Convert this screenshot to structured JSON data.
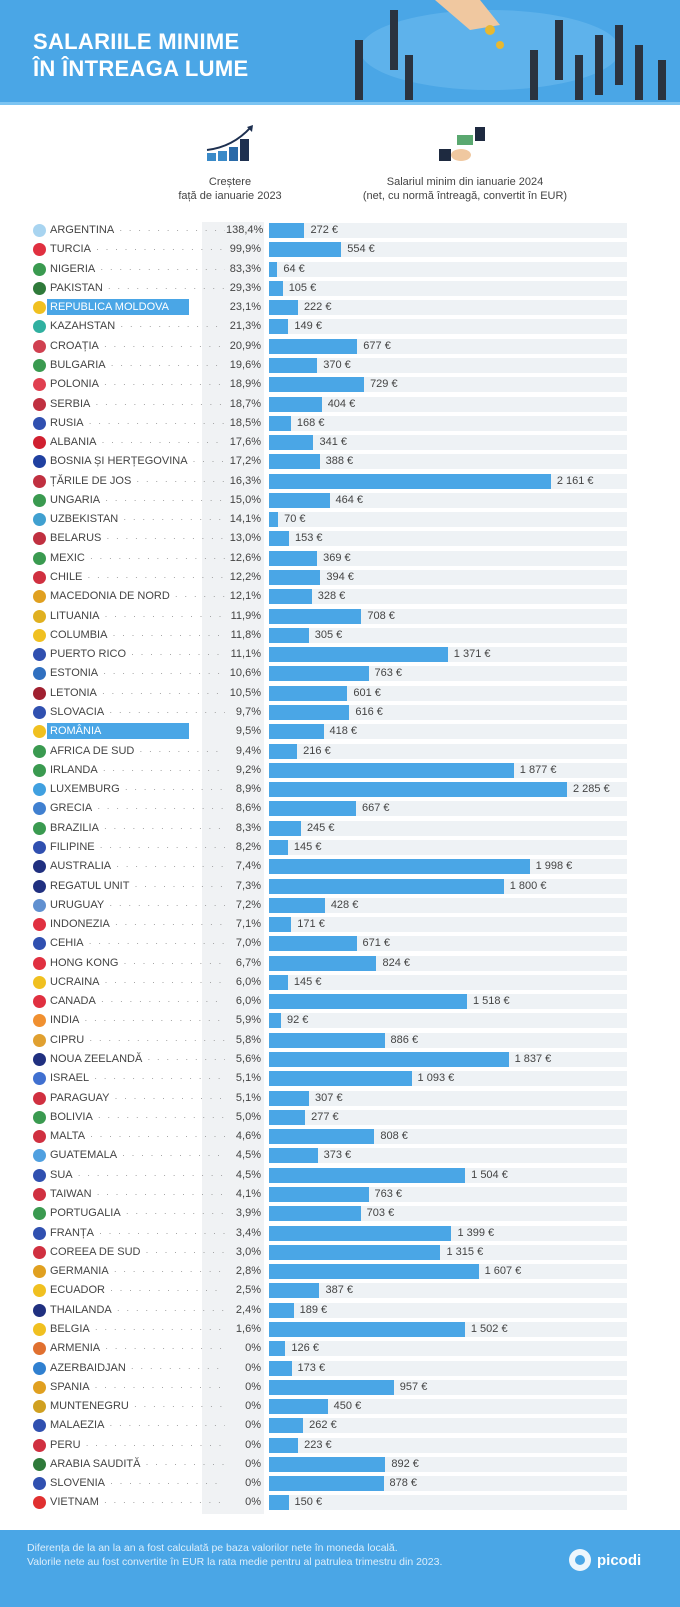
{
  "header": {
    "title_line1": "SALARIILE MINIME",
    "title_line2": "ÎN ÎNTREAGA LUME"
  },
  "columns": {
    "growth_line1": "Creștere",
    "growth_line2": "față de ianuarie 2023",
    "wage_line1": "Salariul minim din ianuarie 2024",
    "wage_line2": "(net, cu normă întreagă, convertit în EUR)"
  },
  "footer": {
    "note_line1": "Diferența de la an la an a fost calculată pe baza valorilor nete în moneda locală.",
    "note_line2": "Valorile nete au fost convertite în EUR la rata medie pentru al patrulea trimestru din 2023.",
    "logo": "picodi"
  },
  "colors": {
    "accent": "#4aa6e6",
    "track": "#eef2f5"
  },
  "chart_data": {
    "type": "bar",
    "orientation": "horizontal",
    "title": "SALARIILE MINIME ÎN ÎNTREAGA LUME",
    "unit": "€",
    "xlim": [
      0,
      2700
    ],
    "highlighted": [
      "REPUBLICA MOLDOVA",
      "ROMÂNIA"
    ],
    "rows": [
      {
        "country": "ARGENTINA",
        "growth": "138,4%",
        "wage": 272,
        "label": "272 €",
        "flag": "#a8d4f0"
      },
      {
        "country": "TURCIA",
        "growth": "99,9%",
        "wage": 554,
        "label": "554 €",
        "flag": "#e03040"
      },
      {
        "country": "NIGERIA",
        "growth": "83,3%",
        "wage": 64,
        "label": "64 €",
        "flag": "#3a9a50"
      },
      {
        "country": "PAKISTAN",
        "growth": "29,3%",
        "wage": 105,
        "label": "105 €",
        "flag": "#2f7a3a"
      },
      {
        "country": "REPUBLICA MOLDOVA",
        "growth": "23,1%",
        "wage": 222,
        "label": "222 €",
        "flag": "#f0c020"
      },
      {
        "country": "KAZAHSTAN",
        "growth": "21,3%",
        "wage": 149,
        "label": "149 €",
        "flag": "#30b0a0"
      },
      {
        "country": "CROAȚIA",
        "growth": "20,9%",
        "wage": 677,
        "label": "677 €",
        "flag": "#d04050"
      },
      {
        "country": "BULGARIA",
        "growth": "19,6%",
        "wage": 370,
        "label": "370 €",
        "flag": "#3a9a50"
      },
      {
        "country": "POLONIA",
        "growth": "18,9%",
        "wage": 729,
        "label": "729 €",
        "flag": "#e04050"
      },
      {
        "country": "SERBIA",
        "growth": "18,7%",
        "wage": 404,
        "label": "404 €",
        "flag": "#c03040"
      },
      {
        "country": "RUSIA",
        "growth": "18,5%",
        "wage": 168,
        "label": "168 €",
        "flag": "#3050b0"
      },
      {
        "country": "ALBANIA",
        "growth": "17,6%",
        "wage": 341,
        "label": "341 €",
        "flag": "#d02030"
      },
      {
        "country": "BOSNIA ȘI HERȚEGOVINA",
        "growth": "17,2%",
        "wage": 388,
        "label": "388 €",
        "flag": "#2040a0"
      },
      {
        "country": "ȚĂRILE DE JOS",
        "growth": "16,3%",
        "wage": 2161,
        "label": "2 161 €",
        "flag": "#c03040"
      },
      {
        "country": "UNGARIA",
        "growth": "15,0%",
        "wage": 464,
        "label": "464 €",
        "flag": "#3a9a50"
      },
      {
        "country": "UZBEKISTAN",
        "growth": "14,1%",
        "wage": 70,
        "label": "70 €",
        "flag": "#40a0d0"
      },
      {
        "country": "BELARUS",
        "growth": "13,0%",
        "wage": 153,
        "label": "153 €",
        "flag": "#c03040"
      },
      {
        "country": "MEXIC",
        "growth": "12,6%",
        "wage": 369,
        "label": "369 €",
        "flag": "#3a9a50"
      },
      {
        "country": "CHILE",
        "growth": "12,2%",
        "wage": 394,
        "label": "394 €",
        "flag": "#d03040"
      },
      {
        "country": "MACEDONIA DE NORD",
        "growth": "12,1%",
        "wage": 328,
        "label": "328 €",
        "flag": "#e0a020"
      },
      {
        "country": "LITUANIA",
        "growth": "11,9%",
        "wage": 708,
        "label": "708 €",
        "flag": "#e0b020"
      },
      {
        "country": "COLUMBIA",
        "growth": "11,8%",
        "wage": 305,
        "label": "305 €",
        "flag": "#f0c020"
      },
      {
        "country": "PUERTO RICO",
        "growth": "11,1%",
        "wage": 1371,
        "label": "1 371 €",
        "flag": "#3050b0"
      },
      {
        "country": "ESTONIA",
        "growth": "10,6%",
        "wage": 763,
        "label": "763 €",
        "flag": "#3070c0"
      },
      {
        "country": "LETONIA",
        "growth": "10,5%",
        "wage": 601,
        "label": "601 €",
        "flag": "#a02030"
      },
      {
        "country": "SLOVACIA",
        "growth": "9,7%",
        "wage": 616,
        "label": "616 €",
        "flag": "#3050b0"
      },
      {
        "country": "ROMÂNIA",
        "growth": "9,5%",
        "wage": 418,
        "label": "418 €",
        "flag": "#f0c020"
      },
      {
        "country": "AFRICA DE SUD",
        "growth": "9,4%",
        "wage": 216,
        "label": "216 €",
        "flag": "#3a9a50"
      },
      {
        "country": "IRLANDA",
        "growth": "9,2%",
        "wage": 1877,
        "label": "1 877 €",
        "flag": "#3a9a50"
      },
      {
        "country": "LUXEMBURG",
        "growth": "8,9%",
        "wage": 2285,
        "label": "2 285 €",
        "flag": "#40a0e0"
      },
      {
        "country": "GRECIA",
        "growth": "8,6%",
        "wage": 667,
        "label": "667 €",
        "flag": "#4080d0"
      },
      {
        "country": "BRAZILIA",
        "growth": "8,3%",
        "wage": 245,
        "label": "245 €",
        "flag": "#3a9a50"
      },
      {
        "country": "FILIPINE",
        "growth": "8,2%",
        "wage": 145,
        "label": "145 €",
        "flag": "#3050b0"
      },
      {
        "country": "AUSTRALIA",
        "growth": "7,4%",
        "wage": 1998,
        "label": "1 998 €",
        "flag": "#203080"
      },
      {
        "country": "REGATUL UNIT",
        "growth": "7,3%",
        "wage": 1800,
        "label": "1 800 €",
        "flag": "#203080"
      },
      {
        "country": "URUGUAY",
        "growth": "7,2%",
        "wage": 428,
        "label": "428 €",
        "flag": "#6090d0"
      },
      {
        "country": "INDONEZIA",
        "growth": "7,1%",
        "wage": 171,
        "label": "171 €",
        "flag": "#e03040"
      },
      {
        "country": "CEHIA",
        "growth": "7,0%",
        "wage": 671,
        "label": "671 €",
        "flag": "#3050b0"
      },
      {
        "country": "HONG KONG",
        "growth": "6,7%",
        "wage": 824,
        "label": "824 €",
        "flag": "#e03040"
      },
      {
        "country": "UCRAINA",
        "growth": "6,0%",
        "wage": 145,
        "label": "145 €",
        "flag": "#f0c020"
      },
      {
        "country": "CANADA",
        "growth": "6,0%",
        "wage": 1518,
        "label": "1 518 €",
        "flag": "#e03040"
      },
      {
        "country": "INDIA",
        "growth": "5,9%",
        "wage": 92,
        "label": "92 €",
        "flag": "#f09030"
      },
      {
        "country": "CIPRU",
        "growth": "5,8%",
        "wage": 886,
        "label": "886 €",
        "flag": "#e0a030"
      },
      {
        "country": "NOUA ZEELANDĂ",
        "growth": "5,6%",
        "wage": 1837,
        "label": "1 837 €",
        "flag": "#203080"
      },
      {
        "country": "ISRAEL",
        "growth": "5,1%",
        "wage": 1093,
        "label": "1 093 €",
        "flag": "#4070d0"
      },
      {
        "country": "PARAGUAY",
        "growth": "5,1%",
        "wage": 307,
        "label": "307 €",
        "flag": "#d03040"
      },
      {
        "country": "BOLIVIA",
        "growth": "5,0%",
        "wage": 277,
        "label": "277 €",
        "flag": "#3a9a50"
      },
      {
        "country": "MALTA",
        "growth": "4,6%",
        "wage": 808,
        "label": "808 €",
        "flag": "#d03040"
      },
      {
        "country": "GUATEMALA",
        "growth": "4,5%",
        "wage": 373,
        "label": "373 €",
        "flag": "#50a0e0"
      },
      {
        "country": "SUA",
        "growth": "4,5%",
        "wage": 1504,
        "label": "1 504 €",
        "flag": "#3050b0"
      },
      {
        "country": "TAIWAN",
        "growth": "4,1%",
        "wage": 763,
        "label": "763 €",
        "flag": "#d03040"
      },
      {
        "country": "PORTUGALIA",
        "growth": "3,9%",
        "wage": 703,
        "label": "703 €",
        "flag": "#3a9a50"
      },
      {
        "country": "FRANȚA",
        "growth": "3,4%",
        "wage": 1399,
        "label": "1 399 €",
        "flag": "#3050b0"
      },
      {
        "country": "COREEA DE SUD",
        "growth": "3,0%",
        "wage": 1315,
        "label": "1 315 €",
        "flag": "#d03040"
      },
      {
        "country": "GERMANIA",
        "growth": "2,8%",
        "wage": 1607,
        "label": "1 607 €",
        "flag": "#e0a020"
      },
      {
        "country": "ECUADOR",
        "growth": "2,5%",
        "wage": 387,
        "label": "387 €",
        "flag": "#f0c020"
      },
      {
        "country": "THAILANDA",
        "growth": "2,4%",
        "wage": 189,
        "label": "189 €",
        "flag": "#203080"
      },
      {
        "country": "BELGIA",
        "growth": "1,6%",
        "wage": 1502,
        "label": "1 502 €",
        "flag": "#f0c020"
      },
      {
        "country": "ARMENIA",
        "growth": "0%",
        "wage": 126,
        "label": "126 €",
        "flag": "#e07030"
      },
      {
        "country": "AZERBAIDJAN",
        "growth": "0%",
        "wage": 173,
        "label": "173 €",
        "flag": "#3080d0"
      },
      {
        "country": "SPANIA",
        "growth": "0%",
        "wage": 957,
        "label": "957 €",
        "flag": "#e0a020"
      },
      {
        "country": "MUNTENEGRU",
        "growth": "0%",
        "wage": 450,
        "label": "450 €",
        "flag": "#d0a020"
      },
      {
        "country": "MALAEZIA",
        "growth": "0%",
        "wage": 262,
        "label": "262 €",
        "flag": "#3050b0"
      },
      {
        "country": "PERU",
        "growth": "0%",
        "wage": 223,
        "label": "223 €",
        "flag": "#d03040"
      },
      {
        "country": "ARABIA SAUDITĂ",
        "growth": "0%",
        "wage": 892,
        "label": "892 €",
        "flag": "#2f7a3a"
      },
      {
        "country": "SLOVENIA",
        "growth": "0%",
        "wage": 878,
        "label": "878 €",
        "flag": "#3050b0"
      },
      {
        "country": "VIETNAM",
        "growth": "0%",
        "wage": 150,
        "label": "150 €",
        "flag": "#e03030"
      }
    ]
  }
}
